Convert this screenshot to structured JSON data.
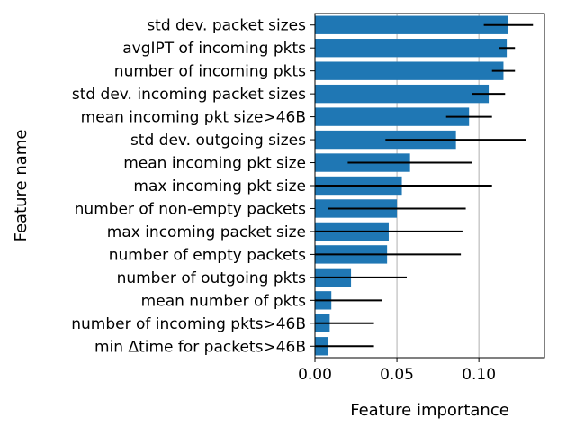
{
  "chart_data": {
    "type": "bar",
    "orientation": "horizontal",
    "xlabel": "Feature importance",
    "ylabel": "Feature name",
    "xlim": [
      0,
      0.14
    ],
    "xticks": [
      0.0,
      0.05,
      0.1
    ],
    "xtick_labels": [
      "0.00",
      "0.05",
      "0.10"
    ],
    "grid": "vertical lines at x ticks",
    "bar_color": "#1f77b4",
    "error_bar_color": "#000000",
    "categories": [
      "std dev. packet sizes",
      "avgIPT of incoming pkts",
      "number of incoming pkts",
      "std dev. incoming packet sizes",
      "mean incoming pkt size>46B",
      "std dev. outgoing sizes",
      "mean incoming pkt size",
      "max incoming pkt size",
      "number of non-empty packets",
      "max incoming packet size",
      "number of empty packets",
      "number of outgoing pkts",
      "mean number of pkts",
      "number of incoming pkts>46B",
      "min Δtime for packets>46B"
    ],
    "values": [
      0.118,
      0.117,
      0.115,
      0.106,
      0.094,
      0.086,
      0.058,
      0.053,
      0.05,
      0.045,
      0.044,
      0.022,
      0.01,
      0.009,
      0.008
    ],
    "errors": [
      0.015,
      0.005,
      0.007,
      0.01,
      0.014,
      0.043,
      0.038,
      0.055,
      0.042,
      0.045,
      0.045,
      0.034,
      0.031,
      0.027,
      0.028
    ]
  }
}
